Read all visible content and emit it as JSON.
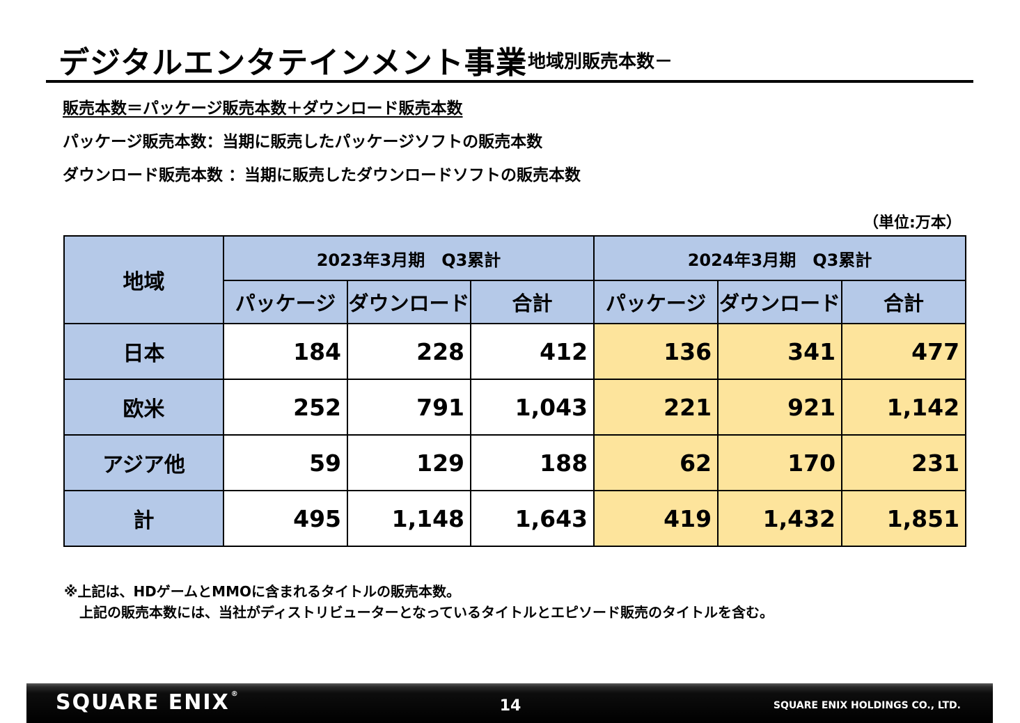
{
  "title": {
    "main": "デジタルエンタテインメント事業",
    "sub": "－地域別販売本数－"
  },
  "definitions": [
    "販売本数＝パッケージ販売本数＋ダウンロード販売本数",
    "パッケージ販売本数：当期に販売したパッケージソフトの販売本数",
    "ダウンロード販売本数 ：当期に販売したダウンロードソフトの販売本数"
  ],
  "unit": "（単位:万本）",
  "table": {
    "region_header": "地域",
    "periods": [
      "2023年3月期　Q3累計",
      "2024年3月期　Q3累計"
    ],
    "columns": [
      "パッケージ",
      "ダウンロード",
      "合計",
      "パッケージ",
      "ダウンロード",
      "合計"
    ],
    "rows": [
      {
        "region": "日本",
        "values": [
          "184",
          "228",
          "412",
          "136",
          "341",
          "477"
        ]
      },
      {
        "region": "欧米",
        "values": [
          "252",
          "791",
          "1,043",
          "221",
          "921",
          "1,142"
        ]
      },
      {
        "region": "アジア他",
        "values": [
          "59",
          "129",
          "188",
          "62",
          "170",
          "231"
        ]
      },
      {
        "region": "計",
        "values": [
          "495",
          "1,148",
          "1,643",
          "419",
          "1,432",
          "1,851"
        ]
      }
    ]
  },
  "notes": [
    "※上記は、HDゲームとMMOに含まれるタイトルの販売本数。",
    "上記の販売本数には、当社がディストリビューターとなっているタイトルとエピソード販売のタイトルを含む。"
  ],
  "footer": {
    "logo": "SQUARE ENIX",
    "logo_mark": "®",
    "page": "14",
    "company": "SQUARE ENIX HOLDINGS CO., LTD."
  },
  "colors": {
    "header_bg": "#b5c9e8",
    "current_period_bg": "#fde49c"
  }
}
